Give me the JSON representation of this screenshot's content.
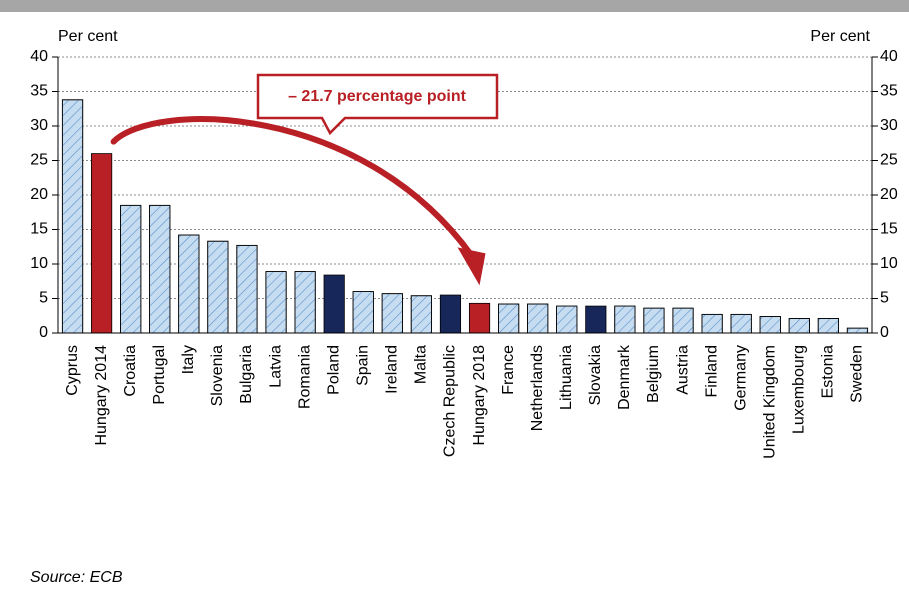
{
  "chart_data": {
    "type": "bar",
    "ylabel": "Per cent",
    "y2label": "Per cent",
    "annotation": "– 21.7 percentage point",
    "source": "Source: ECB",
    "categories": [
      "Cyprus",
      "Hungary 2014",
      "Croatia",
      "Portugal",
      "Italy",
      "Slovenia",
      "Bulgaria",
      "Latvia",
      "Romania",
      "Poland",
      "Spain",
      "Ireland",
      "Malta",
      "Czech Republic",
      "Hungary 2018",
      "France",
      "Netherlands",
      "Lithuania",
      "Slovakia",
      "Denmark",
      "Belgium",
      "Austria",
      "Finland",
      "Germany",
      "United Kingdom",
      "Luxembourg",
      "Estonia",
      "Sweden"
    ],
    "values": [
      33.8,
      26.0,
      18.5,
      18.5,
      14.2,
      13.3,
      12.7,
      8.9,
      8.9,
      8.4,
      6.0,
      5.7,
      5.4,
      5.5,
      4.3,
      4.2,
      4.2,
      3.9,
      3.9,
      3.9,
      3.6,
      3.6,
      2.7,
      2.7,
      2.4,
      2.1,
      2.1,
      0.7
    ],
    "colors": [
      "#c6dcf0",
      "#b92025",
      "#c6dcf0",
      "#c6dcf0",
      "#c6dcf0",
      "#c6dcf0",
      "#c6dcf0",
      "#c6dcf0",
      "#c6dcf0",
      "#17275a",
      "#c6dcf0",
      "#c6dcf0",
      "#c6dcf0",
      "#17275a",
      "#b92025",
      "#c6dcf0",
      "#c6dcf0",
      "#c6dcf0",
      "#17275a",
      "#c6dcf0",
      "#c6dcf0",
      "#c6dcf0",
      "#c6dcf0",
      "#c6dcf0",
      "#c6dcf0",
      "#c6dcf0",
      "#c6dcf0",
      "#c6dcf0"
    ],
    "hatched": [
      true,
      false,
      true,
      true,
      true,
      true,
      true,
      true,
      true,
      false,
      true,
      true,
      true,
      false,
      false,
      true,
      true,
      true,
      false,
      true,
      true,
      true,
      true,
      true,
      true,
      true,
      true,
      true
    ],
    "ylim": [
      0,
      40
    ],
    "yticks": [
      0,
      5,
      10,
      15,
      20,
      25,
      30,
      35,
      40
    ],
    "y2lim": [
      0,
      40
    ],
    "y2ticks": [
      0,
      5,
      10,
      15,
      20,
      25,
      30,
      35,
      40
    ],
    "grid": true
  }
}
